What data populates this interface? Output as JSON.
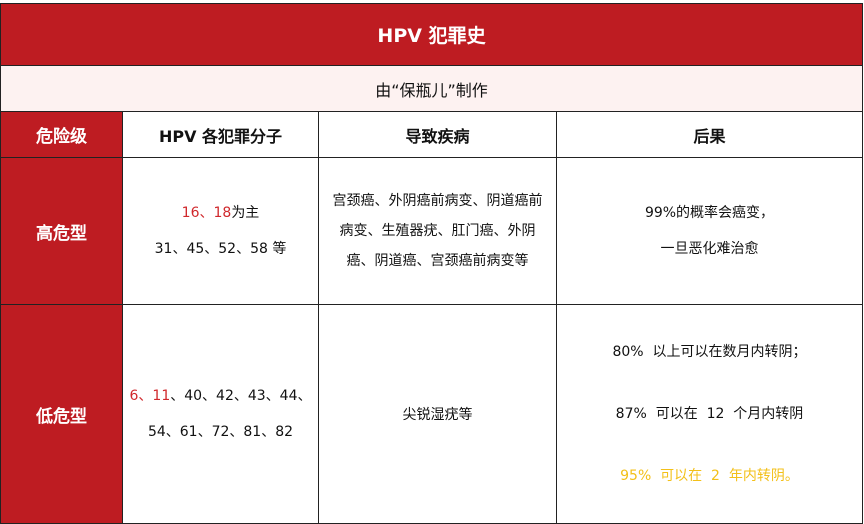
{
  "title": "HPV 犯罪史",
  "subtitle": "由“保瓶儿”制作",
  "headers": [
    "危险级",
    "HPV 各犯罪分子",
    "导致疾病",
    "后果"
  ],
  "rows": [
    {
      "level": "高危型",
      "types_highlight": "16、18",
      "types_line1_rest": "为主",
      "types_line2": "31、45、52、58 等",
      "diseases": [
        "宫颈癌、外阴癌前病变、阴道癌前",
        "病变、生殖器疣、肛门癌、外阴",
        "癌、阴道癌、宫颈癌前病变等"
      ],
      "outcome": [
        "99%的概率会癌变，",
        "一旦恶化难治愈"
      ]
    },
    {
      "level": "低危型",
      "types_highlight": "6、11",
      "types_line1_rest": "、40、42、43、44、",
      "types_line2": "54、61、72、81、82",
      "diseases": [
        "尖锐湿疣等"
      ],
      "outcome": [
        "80%  以上可以在数月内转阴；",
        "87%  可以在  12  个月内转阴",
        "95%  可以在  2  年内转阴。"
      ]
    }
  ],
  "colors": {
    "brand_red": "#be1c22",
    "highlight_red": "#d0282c",
    "highlight_yellow": "#f3c019"
  }
}
